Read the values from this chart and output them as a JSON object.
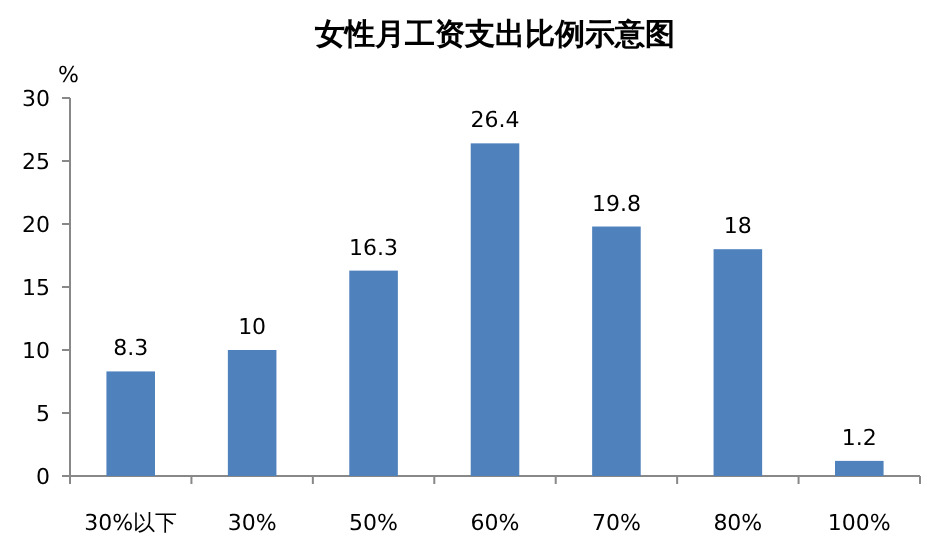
{
  "chart_data": {
    "type": "bar",
    "title": "女性月工资支出比例示意图",
    "ylabel": "%",
    "categories": [
      "30%以下",
      "30%",
      "50%",
      "60%",
      "70%",
      "80%",
      "100%"
    ],
    "values": [
      8.3,
      10,
      16.3,
      26.4,
      19.8,
      18,
      1.2
    ],
    "color": "#4f81bd",
    "ylim": [
      0,
      30
    ],
    "yticks": [
      0,
      5,
      10,
      15,
      20,
      25,
      30
    ],
    "data_labels": true
  }
}
